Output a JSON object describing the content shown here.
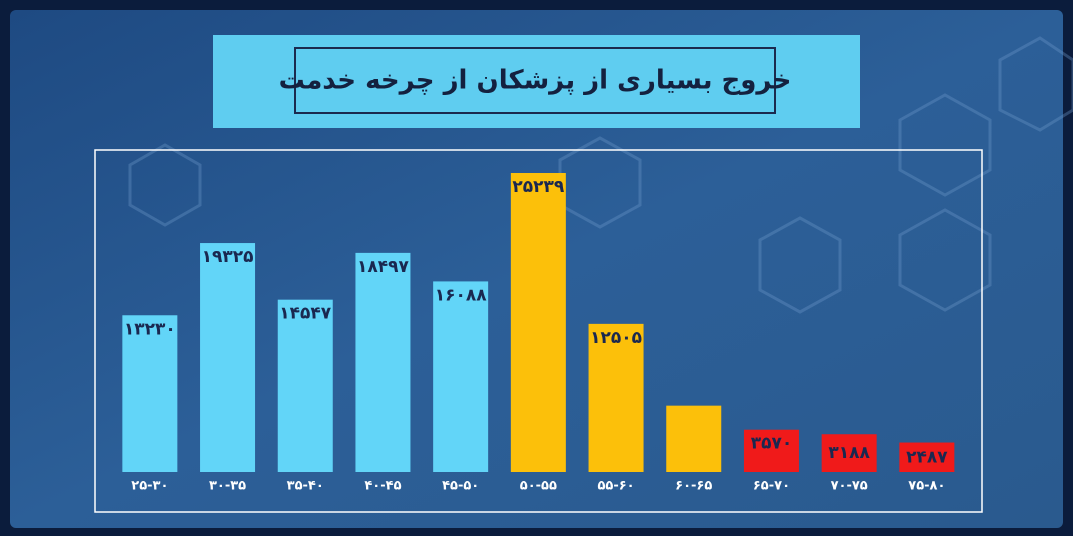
{
  "chart_data": {
    "type": "bar",
    "title": "خروج بسیاری از پزشکان از چرخه خدمت",
    "categories": [
      "۲۵-۳۰",
      "۳۰-۳۵",
      "۳۵-۴۰",
      "۴۰-۴۵",
      "۴۵-۵۰",
      "۵۰-۵۵",
      "۵۵-۶۰",
      "۶۰-۶۵",
      "۶۵-۷۰",
      "۷۰-۷۵",
      "۷۵-۸۰"
    ],
    "values": [
      13230,
      19325,
      14547,
      18497,
      16088,
      25239,
      12505,
      5600,
      3570,
      3188,
      2487
    ],
    "value_labels": [
      "۱۳۲۳۰",
      "۱۹۳۲۵",
      "۱۴۵۴۷",
      "۱۸۴۹۷",
      "۱۶۰۸۸",
      "۲۵۲۳۹",
      "۱۲۵۰۵",
      null,
      "۳۵۷۰",
      "۳۱۸۸",
      "۲۴۸۷"
    ],
    "colors": [
      "#62d5f8",
      "#62d5f8",
      "#62d5f8",
      "#62d5f8",
      "#62d5f8",
      "#fcc00a",
      "#fcc00a",
      "#fcc00a",
      "#f01a1a",
      "#f01a1a",
      "#f01a1a"
    ]
  }
}
